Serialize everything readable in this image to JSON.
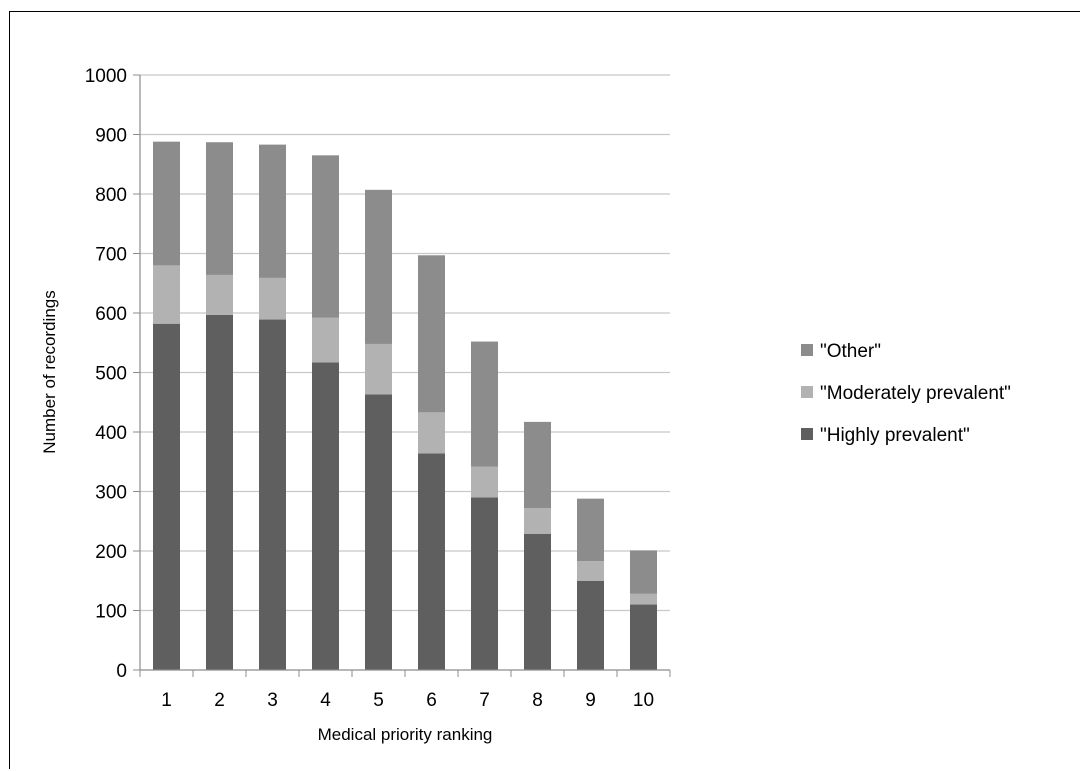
{
  "chart_data": {
    "type": "bar",
    "stacked": true,
    "categories": [
      "1",
      "2",
      "3",
      "4",
      "5",
      "6",
      "7",
      "8",
      "9",
      "10"
    ],
    "series": [
      {
        "name": "\"Highly prevalent\"",
        "color": "#5f5f5f",
        "values": [
          582,
          597,
          589,
          517,
          463,
          364,
          290,
          229,
          150,
          110
        ]
      },
      {
        "name": "\"Moderately prevalent\"",
        "color": "#b2b2b2",
        "values": [
          98,
          67,
          70,
          75,
          85,
          69,
          52,
          43,
          33,
          18
        ]
      },
      {
        "name": "\"Other\"",
        "color": "#8c8c8c",
        "values": [
          208,
          223,
          224,
          273,
          259,
          264,
          210,
          145,
          105,
          73
        ]
      }
    ],
    "xlabel": "Medical priority ranking",
    "ylabel": "Number of recordings",
    "ylim": [
      0,
      1000
    ],
    "yticks": [
      0,
      100,
      200,
      300,
      400,
      500,
      600,
      700,
      800,
      900,
      1000
    ],
    "grid": true,
    "legend_position": "right",
    "legend_order": [
      "\"Other\"",
      "\"Moderately prevalent\"",
      "\"Highly prevalent\""
    ]
  }
}
